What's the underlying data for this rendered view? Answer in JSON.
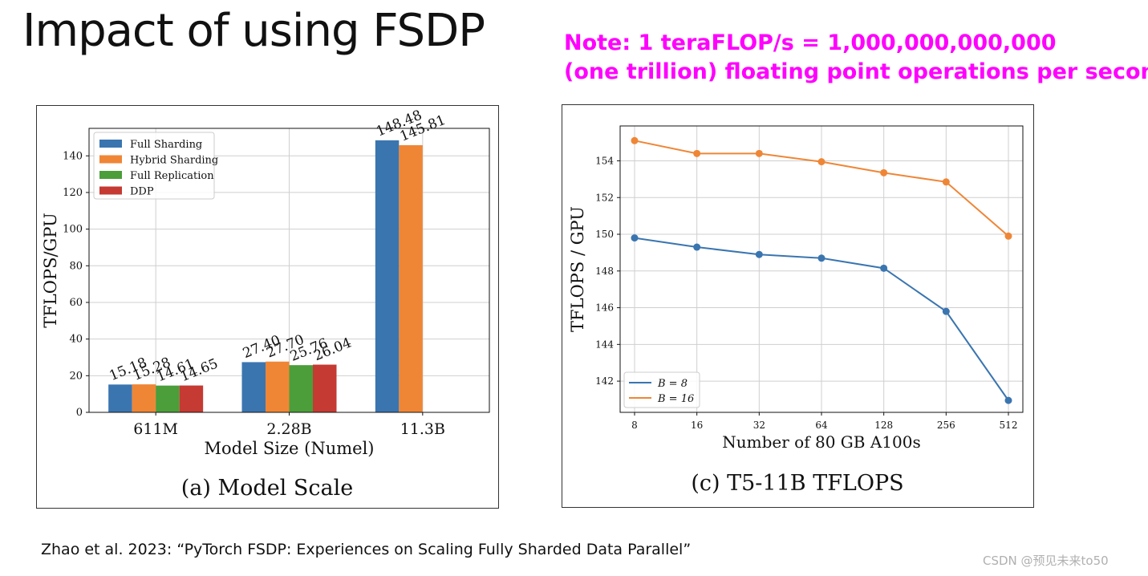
{
  "slide": {
    "title": "Impact of using FSDP",
    "note_line1": "Note: 1 teraFLOP/s = 1,000,000,000,000",
    "note_line2": "(one trillion) floating point operations per second",
    "citation": "Zhao et al. 2023: “PyTorch FSDP: Experiences on Scaling Fully Sharded Data Parallel”",
    "watermark": "CSDN @预见未来to50"
  },
  "colors": {
    "note": "#ff00ff",
    "full_sharding": "#3a75b0",
    "hybrid_sharding": "#ef8636",
    "full_replication": "#4b9e3a",
    "ddp": "#c53a32"
  },
  "chart_data": [
    {
      "type": "bar",
      "caption": "(a) Model Scale",
      "xlabel": "Model Size (Numel)",
      "ylabel": "TFLOPS/GPU",
      "ylim": [
        0,
        155
      ],
      "yticks": [
        0,
        20,
        40,
        60,
        80,
        100,
        120,
        140
      ],
      "grid": true,
      "legend_position": "top-left",
      "categories": [
        "611M",
        "2.28B",
        "11.3B"
      ],
      "series": [
        {
          "name": "Full Sharding",
          "values": [
            15.18,
            27.4,
            148.48
          ],
          "labels": [
            "15.18",
            "27.40",
            "148.48"
          ]
        },
        {
          "name": "Hybrid Sharding",
          "values": [
            15.28,
            27.7,
            145.81
          ],
          "labels": [
            "15.28",
            "27.70",
            "145.81"
          ]
        },
        {
          "name": "Full Replication",
          "values": [
            14.61,
            25.76,
            null
          ],
          "labels": [
            "14.61",
            "25.76",
            ""
          ]
        },
        {
          "name": "DDP",
          "values": [
            14.65,
            26.04,
            null
          ],
          "labels": [
            "14.65",
            "26.04",
            ""
          ]
        }
      ]
    },
    {
      "type": "line",
      "caption": "(c) T5-11B TFLOPS",
      "xlabel": "Number of 80 GB A100s",
      "ylabel": "TFLOPS / GPU",
      "x_scale": "log2",
      "x": [
        8,
        16,
        32,
        64,
        128,
        256,
        512
      ],
      "ylim": [
        140.3,
        155.9
      ],
      "yticks": [
        142,
        144,
        146,
        148,
        150,
        152,
        154
      ],
      "grid": true,
      "legend_position": "bottom-left",
      "series": [
        {
          "name": "B = 8",
          "values": [
            149.8,
            149.3,
            148.9,
            148.7,
            148.15,
            145.8,
            140.95
          ]
        },
        {
          "name": "B = 16",
          "values": [
            155.1,
            154.4,
            154.4,
            153.95,
            153.35,
            152.85,
            149.9
          ]
        }
      ]
    }
  ]
}
